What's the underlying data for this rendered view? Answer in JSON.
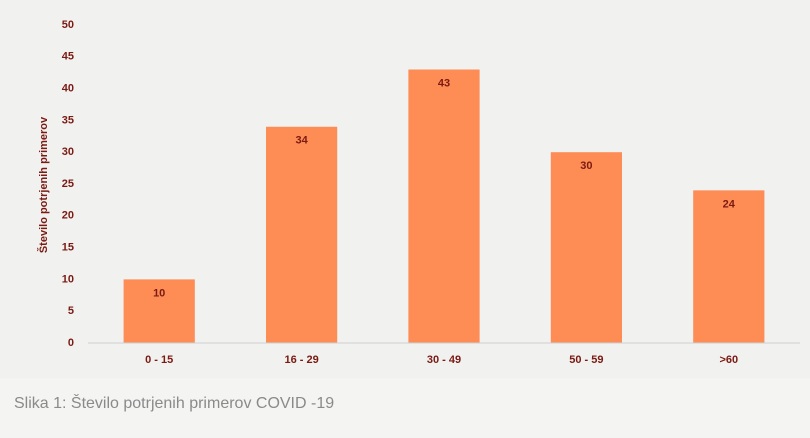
{
  "chart_data": {
    "type": "bar",
    "y_label": "Število potrjenih primerov",
    "categories": [
      "0 - 15",
      "16 - 29",
      "30 - 49",
      "50 - 59",
      ">60"
    ],
    "values": [
      10,
      34,
      43,
      30,
      24
    ],
    "color": "#fd8c55",
    "ylim": [
      0,
      50
    ],
    "yticks": [
      0,
      5,
      10,
      15,
      20,
      25,
      30,
      35,
      40,
      45,
      50
    ],
    "grid": false
  },
  "caption": "Slika 1: Število potrjenih primerov COVID -19"
}
